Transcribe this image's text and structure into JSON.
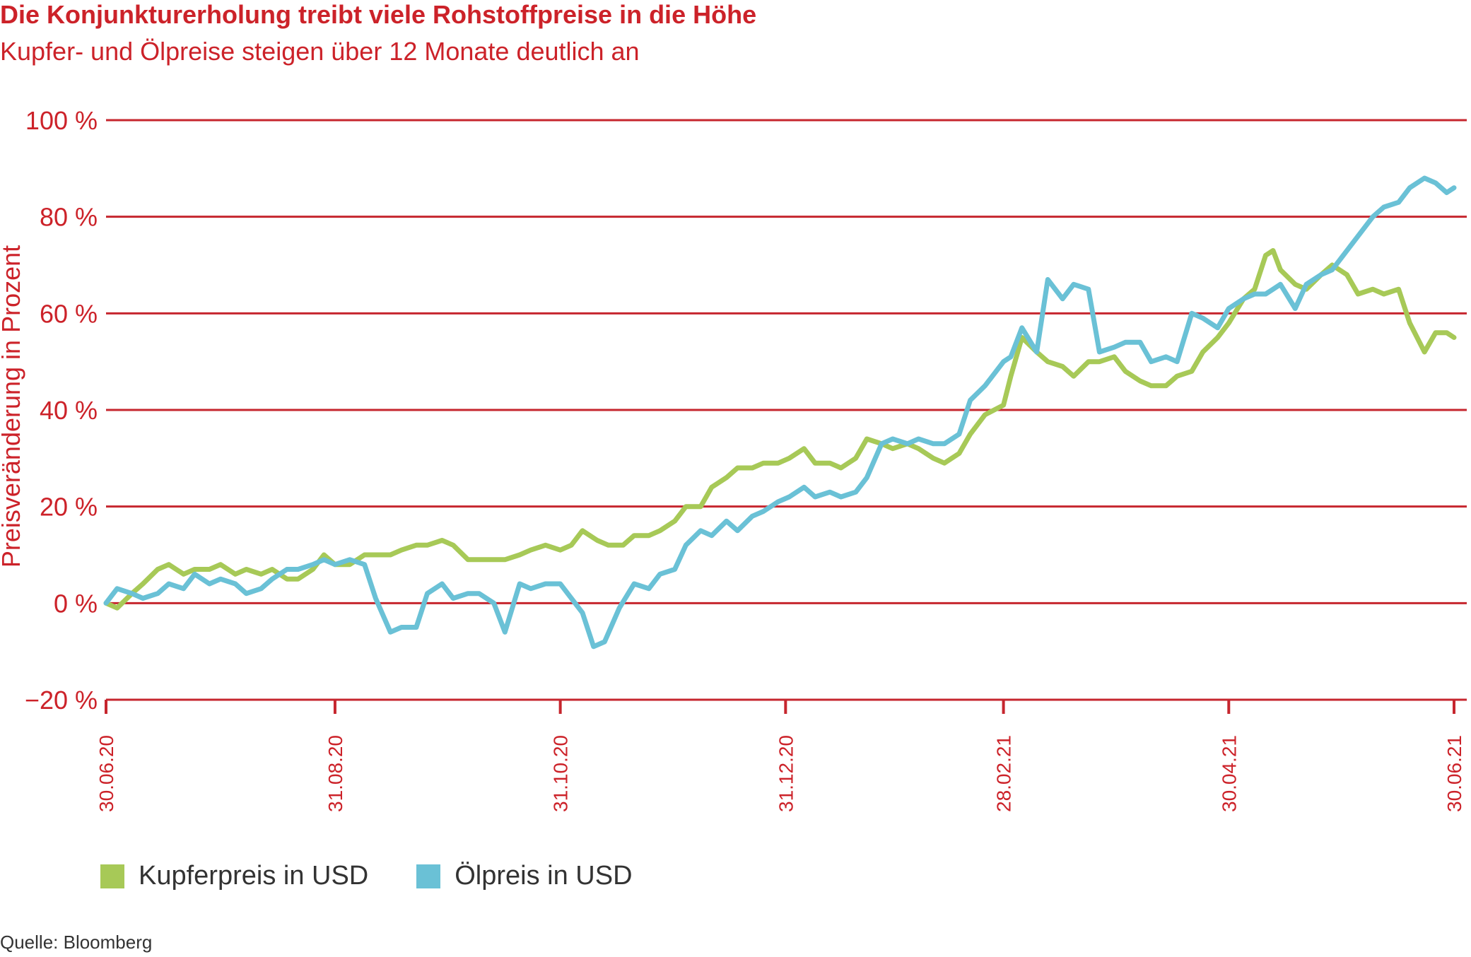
{
  "header": {
    "title": "Die Konjunkturerholung treibt viele Rohstoffpreise in die Höhe",
    "subtitle": "Kupfer- und Ölpreise steigen über 12 Monate deutlich an"
  },
  "footer": {
    "source": "Quelle: Bloomberg"
  },
  "colors": {
    "accent": "#cc2229",
    "grid": "#c6262e",
    "text": "#333333",
    "kupfer": "#a7c957",
    "oel": "#6ac1d6"
  },
  "chart_data": {
    "type": "line",
    "title": "Die Konjunkturerholung treibt viele Rohstoffpreise in die Höhe",
    "subtitle": "Kupfer- und Ölpreise steigen über 12 Monate deutlich an",
    "xlabel": "",
    "ylabel": "Preisveränderung in Prozent",
    "x_range": [
      "2020-06-30",
      "2021-06-30"
    ],
    "ylim": [
      -20,
      100
    ],
    "y_ticks": [
      -20,
      0,
      20,
      40,
      60,
      80,
      100
    ],
    "y_tick_labels": [
      "−20 %",
      "0 %",
      "20 %",
      "40 %",
      "60 %",
      "80 %",
      "100 %"
    ],
    "x_ticks": [
      "2020-06-30",
      "2020-08-31",
      "2020-10-31",
      "2020-12-31",
      "2021-02-28",
      "2021-04-30",
      "2021-06-30"
    ],
    "x_tick_labels": [
      "30.06.20",
      "31.08.20",
      "31.10.20",
      "31.12.20",
      "28.02.21",
      "30.04.21",
      "30.06.21"
    ],
    "grid": true,
    "legend": "bottom-left",
    "series": [
      {
        "name": "Kupferpreis in USD",
        "points": [
          [
            "2020-06-30",
            0
          ],
          [
            "2020-07-03",
            -1
          ],
          [
            "2020-07-07",
            2
          ],
          [
            "2020-07-10",
            4
          ],
          [
            "2020-07-14",
            7
          ],
          [
            "2020-07-17",
            8
          ],
          [
            "2020-07-21",
            6
          ],
          [
            "2020-07-24",
            7
          ],
          [
            "2020-07-28",
            7
          ],
          [
            "2020-07-31",
            8
          ],
          [
            "2020-08-04",
            6
          ],
          [
            "2020-08-07",
            7
          ],
          [
            "2020-08-11",
            6
          ],
          [
            "2020-08-14",
            7
          ],
          [
            "2020-08-18",
            5
          ],
          [
            "2020-08-21",
            5
          ],
          [
            "2020-08-25",
            7
          ],
          [
            "2020-08-28",
            10
          ],
          [
            "2020-08-31",
            8
          ],
          [
            "2020-09-04",
            8
          ],
          [
            "2020-09-08",
            10
          ],
          [
            "2020-09-11",
            10
          ],
          [
            "2020-09-15",
            10
          ],
          [
            "2020-09-18",
            11
          ],
          [
            "2020-09-22",
            12
          ],
          [
            "2020-09-25",
            12
          ],
          [
            "2020-09-29",
            13
          ],
          [
            "2020-10-02",
            12
          ],
          [
            "2020-10-06",
            9
          ],
          [
            "2020-10-09",
            9
          ],
          [
            "2020-10-13",
            9
          ],
          [
            "2020-10-16",
            9
          ],
          [
            "2020-10-20",
            10
          ],
          [
            "2020-10-23",
            11
          ],
          [
            "2020-10-27",
            12
          ],
          [
            "2020-10-31",
            11
          ],
          [
            "2020-11-03",
            12
          ],
          [
            "2020-11-06",
            15
          ],
          [
            "2020-11-10",
            13
          ],
          [
            "2020-11-13",
            12
          ],
          [
            "2020-11-17",
            12
          ],
          [
            "2020-11-20",
            14
          ],
          [
            "2020-11-24",
            14
          ],
          [
            "2020-11-27",
            15
          ],
          [
            "2020-12-01",
            17
          ],
          [
            "2020-12-04",
            20
          ],
          [
            "2020-12-08",
            20
          ],
          [
            "2020-12-11",
            24
          ],
          [
            "2020-12-15",
            26
          ],
          [
            "2020-12-18",
            28
          ],
          [
            "2020-12-22",
            28
          ],
          [
            "2020-12-25",
            29
          ],
          [
            "2020-12-29",
            29
          ],
          [
            "2021-01-01",
            30
          ],
          [
            "2021-01-05",
            32
          ],
          [
            "2021-01-08",
            29
          ],
          [
            "2021-01-12",
            29
          ],
          [
            "2021-01-15",
            28
          ],
          [
            "2021-01-19",
            30
          ],
          [
            "2021-01-22",
            34
          ],
          [
            "2021-01-26",
            33
          ],
          [
            "2021-01-29",
            32
          ],
          [
            "2021-02-02",
            33
          ],
          [
            "2021-02-05",
            32
          ],
          [
            "2021-02-09",
            30
          ],
          [
            "2021-02-12",
            29
          ],
          [
            "2021-02-16",
            31
          ],
          [
            "2021-02-19",
            35
          ],
          [
            "2021-02-23",
            39
          ],
          [
            "2021-02-28",
            41
          ],
          [
            "2021-03-02",
            47
          ],
          [
            "2021-03-05",
            55
          ],
          [
            "2021-03-09",
            52
          ],
          [
            "2021-03-12",
            50
          ],
          [
            "2021-03-16",
            49
          ],
          [
            "2021-03-19",
            47
          ],
          [
            "2021-03-23",
            50
          ],
          [
            "2021-03-26",
            50
          ],
          [
            "2021-03-30",
            51
          ],
          [
            "2021-04-02",
            48
          ],
          [
            "2021-04-06",
            46
          ],
          [
            "2021-04-09",
            45
          ],
          [
            "2021-04-13",
            45
          ],
          [
            "2021-04-16",
            47
          ],
          [
            "2021-04-20",
            48
          ],
          [
            "2021-04-23",
            52
          ],
          [
            "2021-04-27",
            55
          ],
          [
            "2021-04-30",
            58
          ],
          [
            "2021-05-04",
            63
          ],
          [
            "2021-05-07",
            65
          ],
          [
            "2021-05-10",
            72
          ],
          [
            "2021-05-12",
            73
          ],
          [
            "2021-05-14",
            69
          ],
          [
            "2021-05-18",
            66
          ],
          [
            "2021-05-21",
            65
          ],
          [
            "2021-05-25",
            68
          ],
          [
            "2021-05-28",
            70
          ],
          [
            "2021-06-01",
            68
          ],
          [
            "2021-06-04",
            64
          ],
          [
            "2021-06-08",
            65
          ],
          [
            "2021-06-11",
            64
          ],
          [
            "2021-06-15",
            65
          ],
          [
            "2021-06-18",
            58
          ],
          [
            "2021-06-22",
            52
          ],
          [
            "2021-06-25",
            56
          ],
          [
            "2021-06-28",
            56
          ],
          [
            "2021-06-30",
            55
          ]
        ]
      },
      {
        "name": "Ölpreis in USD",
        "points": [
          [
            "2020-06-30",
            0
          ],
          [
            "2020-07-03",
            3
          ],
          [
            "2020-07-07",
            2
          ],
          [
            "2020-07-10",
            1
          ],
          [
            "2020-07-14",
            2
          ],
          [
            "2020-07-17",
            4
          ],
          [
            "2020-07-21",
            3
          ],
          [
            "2020-07-24",
            6
          ],
          [
            "2020-07-28",
            4
          ],
          [
            "2020-07-31",
            5
          ],
          [
            "2020-08-04",
            4
          ],
          [
            "2020-08-07",
            2
          ],
          [
            "2020-08-11",
            3
          ],
          [
            "2020-08-14",
            5
          ],
          [
            "2020-08-18",
            7
          ],
          [
            "2020-08-21",
            7
          ],
          [
            "2020-08-25",
            8
          ],
          [
            "2020-08-28",
            9
          ],
          [
            "2020-08-31",
            8
          ],
          [
            "2020-09-04",
            9
          ],
          [
            "2020-09-08",
            8
          ],
          [
            "2020-09-11",
            1
          ],
          [
            "2020-09-15",
            -6
          ],
          [
            "2020-09-18",
            -5
          ],
          [
            "2020-09-22",
            -5
          ],
          [
            "2020-09-25",
            2
          ],
          [
            "2020-09-29",
            4
          ],
          [
            "2020-10-02",
            1
          ],
          [
            "2020-10-06",
            2
          ],
          [
            "2020-10-09",
            2
          ],
          [
            "2020-10-13",
            0
          ],
          [
            "2020-10-16",
            -6
          ],
          [
            "2020-10-20",
            4
          ],
          [
            "2020-10-23",
            3
          ],
          [
            "2020-10-27",
            4
          ],
          [
            "2020-10-31",
            4
          ],
          [
            "2020-11-03",
            1
          ],
          [
            "2020-11-06",
            -2
          ],
          [
            "2020-11-09",
            -9
          ],
          [
            "2020-11-12",
            -8
          ],
          [
            "2020-11-16",
            -1
          ],
          [
            "2020-11-20",
            4
          ],
          [
            "2020-11-24",
            3
          ],
          [
            "2020-11-27",
            6
          ],
          [
            "2020-12-01",
            7
          ],
          [
            "2020-12-04",
            12
          ],
          [
            "2020-12-08",
            15
          ],
          [
            "2020-12-11",
            14
          ],
          [
            "2020-12-15",
            17
          ],
          [
            "2020-12-18",
            15
          ],
          [
            "2020-12-22",
            18
          ],
          [
            "2020-12-25",
            19
          ],
          [
            "2020-12-29",
            21
          ],
          [
            "2021-01-01",
            22
          ],
          [
            "2021-01-05",
            24
          ],
          [
            "2021-01-08",
            22
          ],
          [
            "2021-01-12",
            23
          ],
          [
            "2021-01-15",
            22
          ],
          [
            "2021-01-19",
            23
          ],
          [
            "2021-01-22",
            26
          ],
          [
            "2021-01-26",
            33
          ],
          [
            "2021-01-29",
            34
          ],
          [
            "2021-02-02",
            33
          ],
          [
            "2021-02-05",
            34
          ],
          [
            "2021-02-09",
            33
          ],
          [
            "2021-02-12",
            33
          ],
          [
            "2021-02-16",
            35
          ],
          [
            "2021-02-19",
            42
          ],
          [
            "2021-02-23",
            45
          ],
          [
            "2021-02-28",
            50
          ],
          [
            "2021-03-02",
            51
          ],
          [
            "2021-03-05",
            57
          ],
          [
            "2021-03-09",
            52
          ],
          [
            "2021-03-12",
            67
          ],
          [
            "2021-03-16",
            63
          ],
          [
            "2021-03-19",
            66
          ],
          [
            "2021-03-23",
            65
          ],
          [
            "2021-03-26",
            52
          ],
          [
            "2021-03-30",
            53
          ],
          [
            "2021-04-02",
            54
          ],
          [
            "2021-04-06",
            54
          ],
          [
            "2021-04-09",
            50
          ],
          [
            "2021-04-13",
            51
          ],
          [
            "2021-04-16",
            50
          ],
          [
            "2021-04-20",
            60
          ],
          [
            "2021-04-23",
            59
          ],
          [
            "2021-04-27",
            57
          ],
          [
            "2021-04-30",
            61
          ],
          [
            "2021-05-04",
            63
          ],
          [
            "2021-05-07",
            64
          ],
          [
            "2021-05-10",
            64
          ],
          [
            "2021-05-12",
            65
          ],
          [
            "2021-05-14",
            66
          ],
          [
            "2021-05-18",
            61
          ],
          [
            "2021-05-21",
            66
          ],
          [
            "2021-05-25",
            68
          ],
          [
            "2021-05-28",
            69
          ],
          [
            "2021-06-01",
            73
          ],
          [
            "2021-06-04",
            76
          ],
          [
            "2021-06-08",
            80
          ],
          [
            "2021-06-11",
            82
          ],
          [
            "2021-06-15",
            83
          ],
          [
            "2021-06-18",
            86
          ],
          [
            "2021-06-22",
            88
          ],
          [
            "2021-06-25",
            87
          ],
          [
            "2021-06-28",
            85
          ],
          [
            "2021-06-30",
            86
          ]
        ]
      }
    ]
  }
}
